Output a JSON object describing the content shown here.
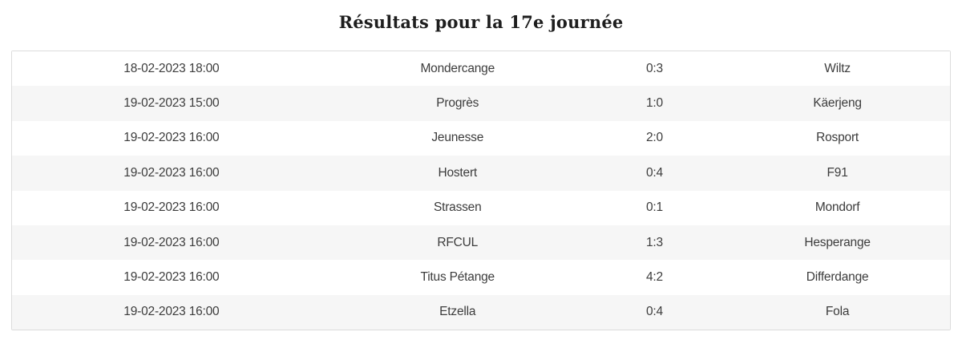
{
  "page": {
    "title": "Résultats pour la 17e journée"
  },
  "colors": {
    "background": "#ffffff",
    "row_alternate": "#f6f6f6",
    "table_border": "#dcdcdc",
    "cell_text": "#3c3c3c",
    "title_text": "#1e1e1e"
  },
  "results": {
    "columns": [
      "datetime",
      "home_team",
      "score",
      "away_team"
    ],
    "rows": [
      {
        "datetime": "18-02-2023 18:00",
        "home": "Mondercange",
        "score": "0:3",
        "away": "Wiltz"
      },
      {
        "datetime": "19-02-2023 15:00",
        "home": "Progrès",
        "score": "1:0",
        "away": "Käerjeng"
      },
      {
        "datetime": "19-02-2023 16:00",
        "home": "Jeunesse",
        "score": "2:0",
        "away": "Rosport"
      },
      {
        "datetime": "19-02-2023 16:00",
        "home": "Hostert",
        "score": "0:4",
        "away": "F91"
      },
      {
        "datetime": "19-02-2023 16:00",
        "home": "Strassen",
        "score": "0:1",
        "away": "Mondorf"
      },
      {
        "datetime": "19-02-2023 16:00",
        "home": "RFCUL",
        "score": "1:3",
        "away": "Hesperange"
      },
      {
        "datetime": "19-02-2023 16:00",
        "home": "Titus Pétange",
        "score": "4:2",
        "away": "Differdange"
      },
      {
        "datetime": "19-02-2023 16:00",
        "home": "Etzella",
        "score": "0:4",
        "away": "Fola"
      }
    ]
  }
}
